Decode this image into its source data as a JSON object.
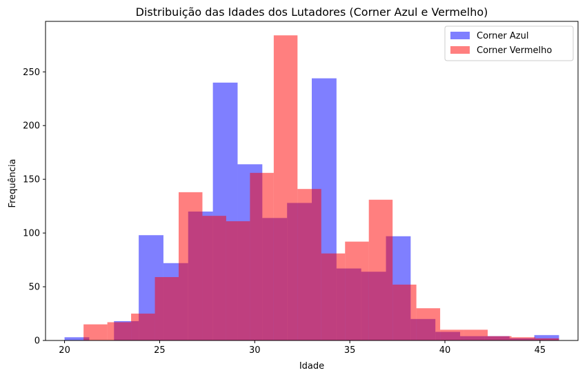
{
  "chart_data": {
    "type": "bar",
    "title": "Distribuição das Idades dos Lutadores (Corner Azul e Vermelho)",
    "xlabel": "Idade",
    "ylabel": "Frequência",
    "xlim": [
      19,
      47
    ],
    "ylim": [
      0,
      297
    ],
    "xticks": [
      20,
      25,
      30,
      35,
      40,
      45
    ],
    "yticks": [
      0,
      50,
      100,
      150,
      200,
      250
    ],
    "grid": false,
    "legend_position": "top-right",
    "series": [
      {
        "name": "Corner Azul",
        "color": "#0000ff",
        "alpha": 0.5,
        "bin_edges": [
          20,
          21.3,
          22.6,
          23.9,
          25.2,
          26.5,
          27.8,
          29.1,
          30.4,
          31.7,
          33.0,
          34.3,
          35.6,
          36.9,
          38.2,
          39.5,
          40.8,
          42.1,
          43.4,
          44.7,
          46.0
        ],
        "counts": [
          3,
          0,
          18,
          98,
          72,
          120,
          240,
          164,
          114,
          128,
          244,
          67,
          64,
          97,
          20,
          8,
          4,
          4,
          2,
          5
        ]
      },
      {
        "name": "Corner Vermelho",
        "color": "#ff0000",
        "alpha": 0.5,
        "bin_edges": [
          21,
          22.25,
          23.5,
          24.75,
          26.0,
          27.25,
          28.5,
          29.75,
          31.0,
          32.25,
          33.5,
          34.75,
          36.0,
          37.25,
          38.5,
          39.75,
          41.0,
          42.25,
          43.5,
          44.75,
          46.0
        ],
        "counts": [
          15,
          17,
          25,
          59,
          138,
          116,
          111,
          156,
          284,
          141,
          81,
          92,
          131,
          52,
          30,
          10,
          10,
          4,
          3,
          2
        ]
      }
    ]
  }
}
